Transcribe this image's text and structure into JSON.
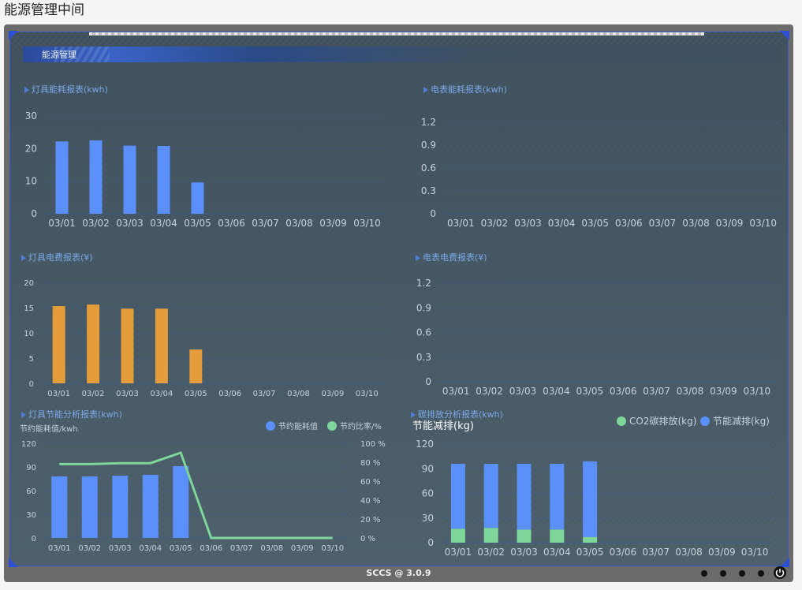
{
  "page": {
    "title": "能源管理中间"
  },
  "dashboard": {
    "header": "能源管理",
    "footer": "SCCS @ 3.0.9"
  },
  "colors": {
    "blue": "#5b8ff9",
    "orange": "#e59d3b",
    "green": "#7fd69a",
    "grid": "#3b5a86",
    "text": "#c9d2dc"
  },
  "chart_data": [
    {
      "id": "lamp-energy",
      "type": "bar",
      "title": "灯具能耗报表(kwh)",
      "categories": [
        "03/01",
        "03/02",
        "03/03",
        "03/04",
        "03/05",
        "03/06",
        "03/07",
        "03/08",
        "03/09",
        "03/10"
      ],
      "values": [
        22.2,
        22.5,
        20.9,
        20.8,
        9.6,
        null,
        null,
        null,
        null,
        null
      ],
      "yticks": [
        0,
        10,
        20,
        30
      ],
      "ylim": [
        0,
        30
      ],
      "color": "#5b8ff9"
    },
    {
      "id": "meter-energy",
      "type": "bar",
      "title": "电表能耗报表(kwh)",
      "categories": [
        "03/01",
        "03/02",
        "03/03",
        "03/04",
        "03/05",
        "03/06",
        "03/07",
        "03/08",
        "03/09",
        "03/10"
      ],
      "values": [
        null,
        null,
        null,
        null,
        null,
        null,
        null,
        null,
        null,
        null
      ],
      "yticks": [
        0,
        0.3,
        0.6,
        0.9,
        1.2
      ],
      "ylim": [
        0,
        1.2
      ],
      "color": "#5b8ff9"
    },
    {
      "id": "lamp-cost",
      "type": "bar",
      "title": "灯具电费报表(¥)",
      "categories": [
        "03/01",
        "03/02",
        "03/03",
        "03/04",
        "03/05",
        "03/06",
        "03/07",
        "03/08",
        "03/09",
        "03/10"
      ],
      "values": [
        15.3,
        15.6,
        14.8,
        14.8,
        6.7,
        null,
        null,
        null,
        null,
        null
      ],
      "yticks": [
        0,
        5,
        10,
        15,
        20
      ],
      "ylim": [
        0,
        20
      ],
      "color": "#e59d3b"
    },
    {
      "id": "meter-cost",
      "type": "bar",
      "title": "电表电费报表(¥)",
      "categories": [
        "03/01",
        "03/02",
        "03/03",
        "03/04",
        "03/05",
        "03/06",
        "03/07",
        "03/08",
        "03/09",
        "03/10"
      ],
      "values": [
        null,
        null,
        null,
        null,
        null,
        null,
        null,
        null,
        null,
        null
      ],
      "yticks": [
        0,
        0.3,
        0.6,
        0.9,
        1.2
      ],
      "ylim": [
        0,
        1.2
      ],
      "color": "#5b8ff9"
    },
    {
      "id": "lamp-saving",
      "type": "bar",
      "title": "灯具节能分析报表(kwh)",
      "ylabel": "节约能耗值/kwh",
      "categories": [
        "03/01",
        "03/02",
        "03/03",
        "03/04",
        "03/05",
        "03/06",
        "03/07",
        "03/08",
        "03/09",
        "03/10"
      ],
      "series": [
        {
          "name": "节约能耗值",
          "type": "bar",
          "values": [
            78,
            78,
            79,
            80,
            91,
            null,
            null,
            null,
            null,
            null
          ],
          "color": "#5b8ff9"
        },
        {
          "name": "节约比率/%",
          "type": "line",
          "axis": "right",
          "values": [
            78,
            78,
            79,
            79,
            90,
            0,
            0,
            0,
            0,
            0
          ],
          "color": "#7fd69a"
        }
      ],
      "yticks": [
        0,
        30,
        60,
        90,
        120
      ],
      "ylim": [
        0,
        120
      ],
      "y2ticks": [
        "0 %",
        "20 %",
        "40 %",
        "60 %",
        "80 %",
        "100 %"
      ],
      "y2lim": [
        0,
        100
      ],
      "legend": "top-right"
    },
    {
      "id": "carbon",
      "type": "bar",
      "stacked": true,
      "title": "碳排放分析报表(kwh)",
      "ylabel": "节能减排(kg)",
      "categories": [
        "03/01",
        "03/02",
        "03/03",
        "03/04",
        "03/05",
        "03/06",
        "03/07",
        "03/08",
        "03/09",
        "03/10"
      ],
      "series": [
        {
          "name": "CO2碳排放(kg)",
          "values": [
            17,
            18,
            16,
            16,
            7,
            null,
            null,
            null,
            null,
            null
          ],
          "color": "#7fd69a"
        },
        {
          "name": "节能减排(kg)",
          "values": [
            79,
            78,
            80,
            80,
            92,
            null,
            null,
            null,
            null,
            null
          ],
          "color": "#5b8ff9"
        }
      ],
      "yticks": [
        0,
        30,
        60,
        90,
        120
      ],
      "ylim": [
        0,
        120
      ],
      "legend": "top-right"
    }
  ]
}
